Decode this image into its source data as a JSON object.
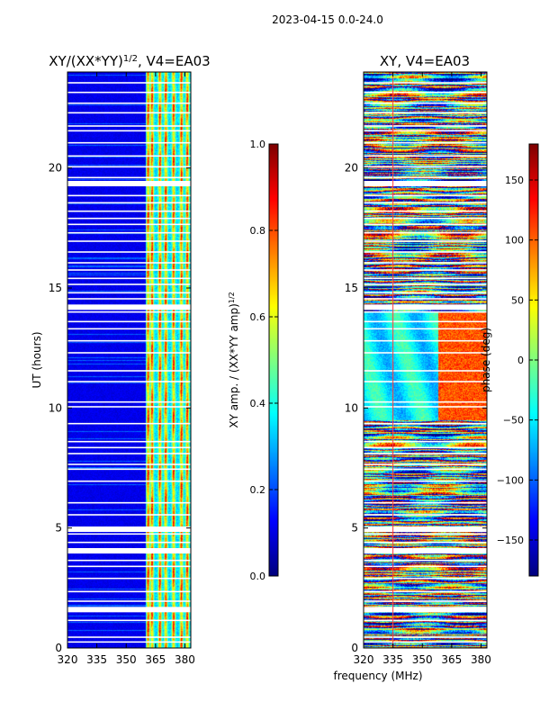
{
  "suptitle": "2023-04-15 0.0-24.0",
  "shared_xlabel": "frequency (MHz)",
  "colors": {
    "jet": [
      "#00007f",
      "#0000ff",
      "#007fff",
      "#00ffff",
      "#7fff7f",
      "#ffff00",
      "#ff7f00",
      "#ff0000",
      "#7f0000"
    ],
    "gap": "#ffffff",
    "frame": "#000000",
    "marker_line": "#ff4040"
  },
  "chart_data": [
    {
      "type": "heatmap",
      "title_main": "XY/(XX*YY)",
      "title_sup": "1/2",
      "title_tail": ", V4=EA03",
      "xlabel": "",
      "ylabel": "UT (hours)",
      "xlim": [
        320,
        383
      ],
      "ylim": [
        0,
        24
      ],
      "xticks": [
        320,
        335,
        350,
        365,
        380
      ],
      "yticks": [
        0,
        5,
        10,
        15,
        20
      ],
      "colorbar": {
        "label_main": "XY amp. / (XX*YY amp)",
        "label_sup": "1/2",
        "range": [
          0.0,
          1.0
        ],
        "ticks": [
          "0.0",
          "0.2",
          "0.4",
          "0.6",
          "0.8",
          "1.0"
        ]
      },
      "features": {
        "background_level": 0.08,
        "bright_band_start_mhz": 360,
        "bright_columns_mhz": [
          361,
          363,
          367,
          370,
          374,
          378,
          381
        ],
        "bright_level": 0.5
      }
    },
    {
      "type": "heatmap",
      "title_main": "XY, V4=EA03",
      "title_sup": "",
      "title_tail": "",
      "xlabel": "",
      "ylabel": "",
      "xlim": [
        320,
        383
      ],
      "ylim": [
        0,
        24
      ],
      "xticks": [
        320,
        335,
        350,
        365,
        380
      ],
      "yticks": [
        0,
        5,
        10,
        15,
        20
      ],
      "colorbar": {
        "label_main": "phase (deg)",
        "label_sup": "",
        "range": [
          -180,
          180
        ],
        "ticks": [
          "−150",
          "−100",
          "−50",
          "0",
          "50",
          "100",
          "150"
        ]
      },
      "features": {
        "phase_noise": "high",
        "coherent_region_hours": [
          9.5,
          14
        ],
        "marker_line_mhz": 335
      }
    }
  ],
  "flagged_hours": [
    0.25,
    0.45,
    1.15,
    1.6,
    1.95,
    2.35,
    2.9,
    3.4,
    3.65,
    4.05,
    4.4,
    4.75,
    4.95,
    5.55,
    6.05,
    6.95,
    7.45,
    7.65,
    8.1,
    8.35,
    8.6,
    9.35,
    10.05,
    10.25,
    11.1,
    11.55,
    12.3,
    12.8,
    13.3,
    13.6,
    14.0,
    14.2,
    14.55,
    14.8,
    15.15,
    15.4,
    15.75,
    16.05,
    16.5,
    16.95,
    17.3,
    17.65,
    17.9,
    18.2,
    18.55,
    18.85,
    19.35,
    19.6,
    20.05,
    20.5,
    21.05,
    21.55,
    21.75,
    22.3,
    22.7,
    23.15,
    23.55
  ],
  "flagged_hours_heavy": [
    1.6,
    4.05,
    4.95,
    14.2,
    19.35
  ]
}
